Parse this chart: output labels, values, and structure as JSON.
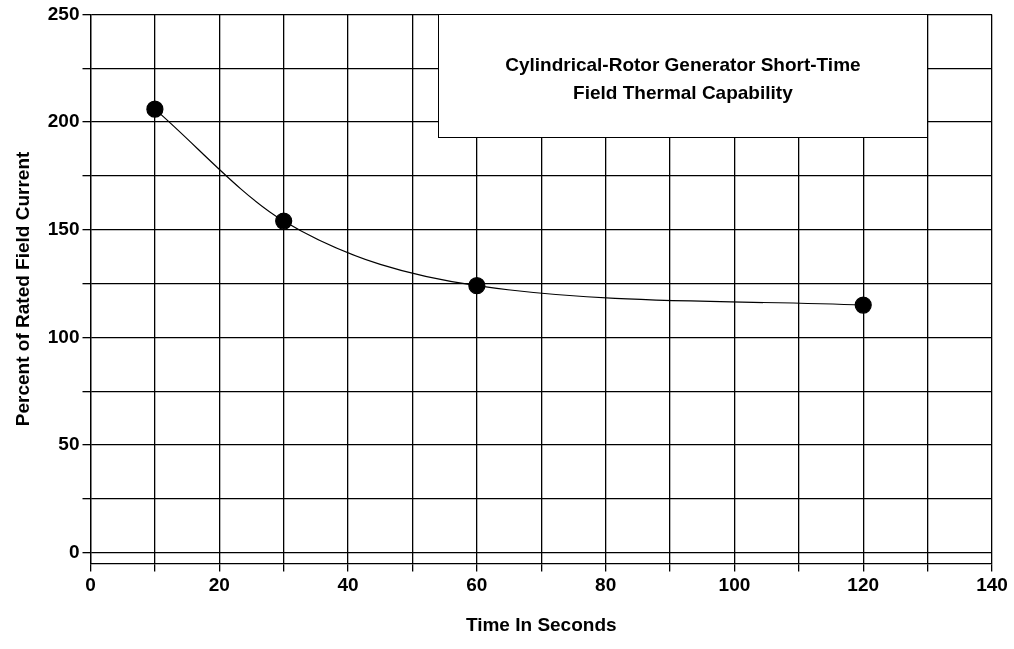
{
  "chart_data": {
    "type": "line",
    "title": "Cylindrical-Rotor Generator Short-Time Field Thermal Capability",
    "xlabel": "Time In Seconds",
    "ylabel": "Percent of Rated Field Current",
    "x": [
      10,
      30,
      60,
      120
    ],
    "series": [
      {
        "color": "#000000",
        "values": [
          206,
          154,
          124,
          115
        ]
      }
    ],
    "xlim": [
      0,
      140
    ],
    "xticks": [
      0,
      {
        "value": 10,
        "label": null
      },
      20,
      {
        "value": 30,
        "label": null
      },
      40,
      {
        "value": 50,
        "label": null
      },
      60,
      {
        "value": 70,
        "label": null
      },
      80,
      {
        "value": 90,
        "label": null
      },
      100,
      {
        "value": 110,
        "label": null
      },
      120,
      {
        "value": 130,
        "label": null
      },
      140
    ],
    "ylim": [
      -5,
      250
    ],
    "yticks": [
      0,
      {
        "value": 25,
        "label": null
      },
      50,
      {
        "value": 75,
        "label": null
      },
      100,
      {
        "value": 125,
        "label": null
      },
      150,
      {
        "value": 175,
        "label": null
      },
      200,
      {
        "value": 225,
        "label": null
      },
      250
    ],
    "grid": true,
    "marker": "circle",
    "line_style": "solid",
    "legend": false
  }
}
